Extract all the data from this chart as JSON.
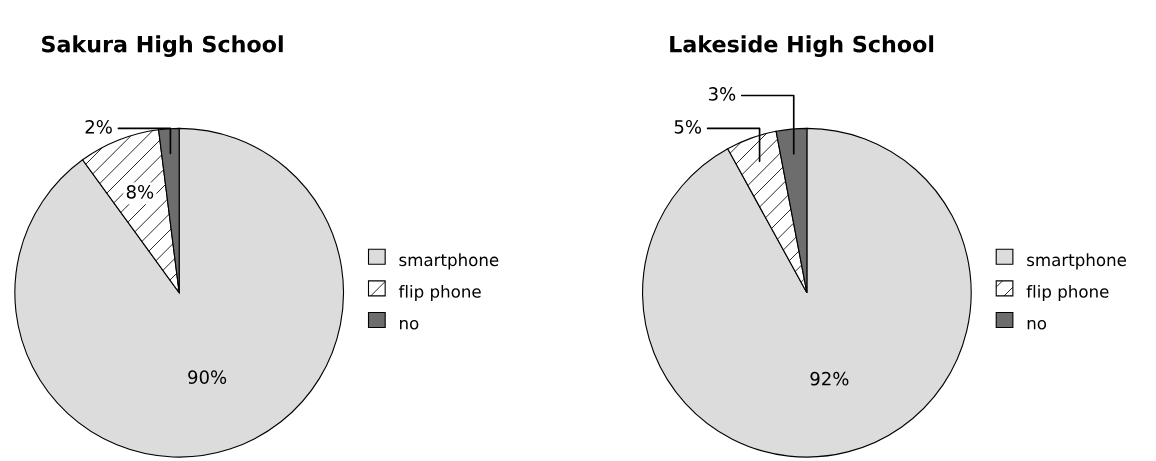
{
  "chart_data": [
    {
      "type": "pie",
      "title": "Sakura High School",
      "categories": [
        "smartphone",
        "flip phone",
        "no"
      ],
      "values": [
        90,
        8,
        2
      ],
      "colors": [
        "#dcdcdc",
        "#ffffff",
        "#6d6d6d"
      ],
      "value_labels": [
        "90%",
        "8%",
        "2%"
      ],
      "legend": "right"
    },
    {
      "type": "pie",
      "title": "Lakeside High School",
      "categories": [
        "smartphone",
        "flip phone",
        "no"
      ],
      "values": [
        92,
        5,
        3
      ],
      "colors": [
        "#dcdcdc",
        "#ffffff",
        "#6d6d6d"
      ],
      "value_labels": [
        "92%",
        "5%",
        "3%"
      ],
      "legend": "right"
    }
  ]
}
